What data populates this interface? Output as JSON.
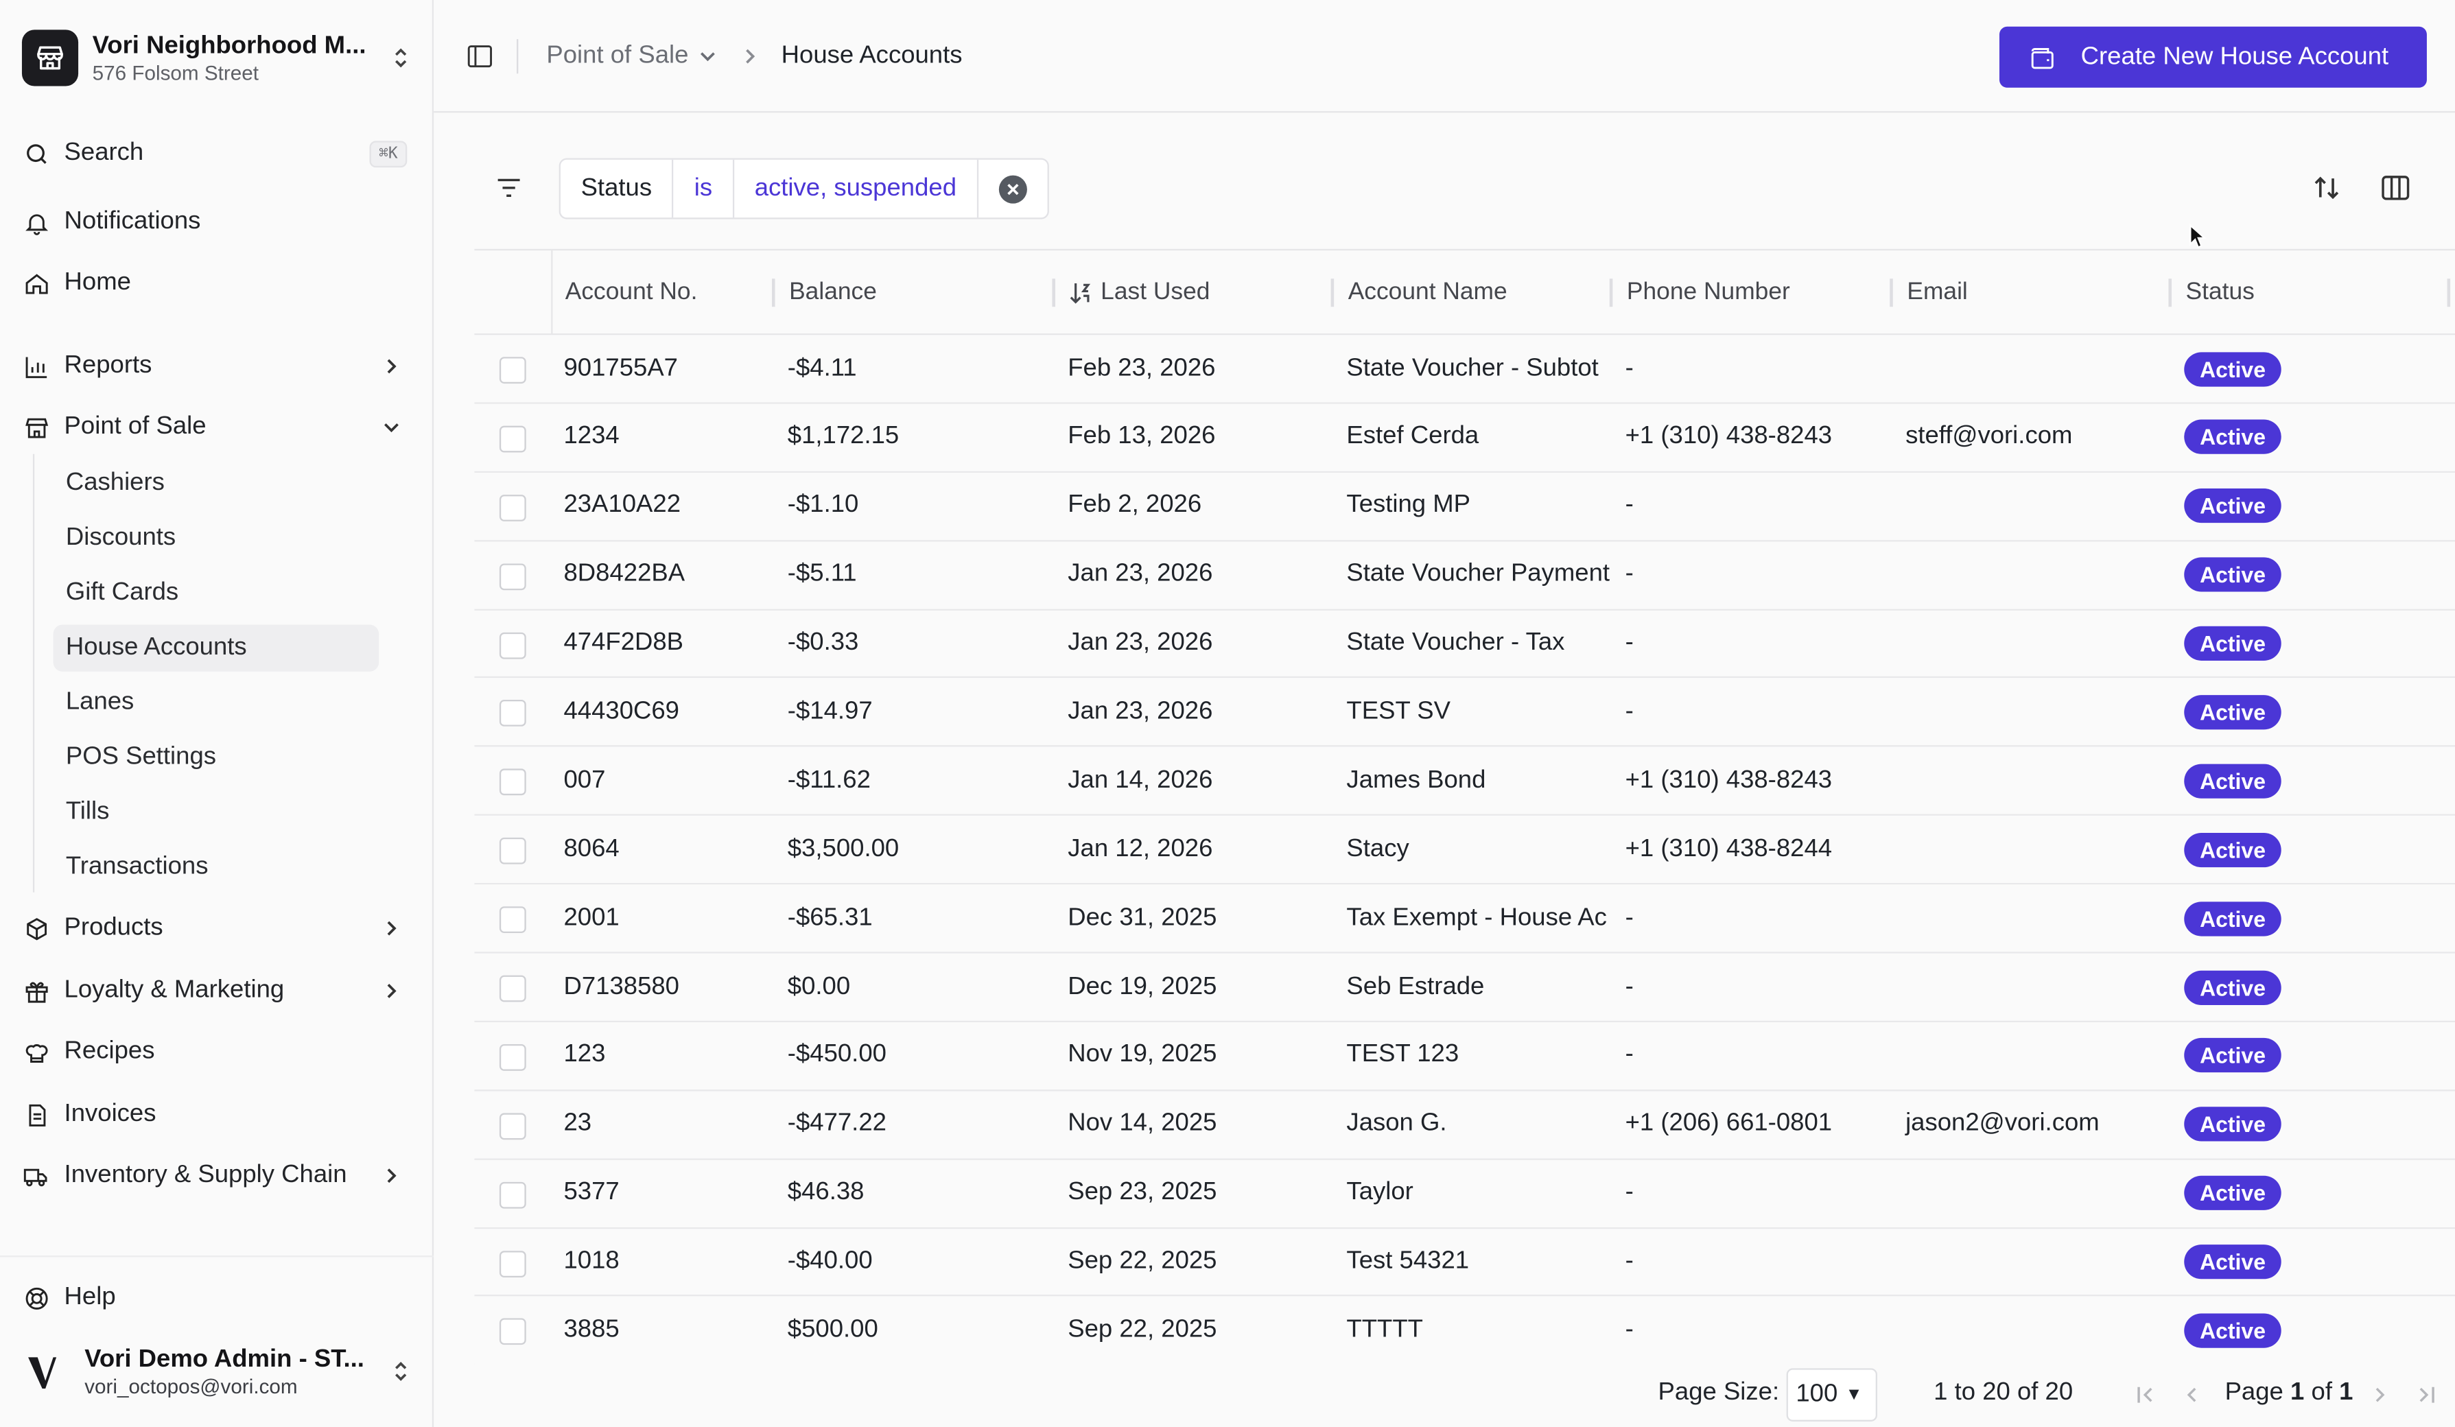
{
  "store": {
    "name": "Vori Neighborhood M...",
    "address": "576 Folsom Street"
  },
  "nav": {
    "search": {
      "label": "Search",
      "shortcut": "⌘K"
    },
    "notifications": "Notifications",
    "home": "Home",
    "reports": "Reports",
    "point_of_sale": "Point of Sale",
    "pos_items": [
      "Cashiers",
      "Discounts",
      "Gift Cards",
      "House Accounts",
      "Lanes",
      "POS Settings",
      "Tills",
      "Transactions"
    ],
    "products": "Products",
    "loyalty": "Loyalty & Marketing",
    "recipes": "Recipes",
    "invoices": "Invoices",
    "inventory": "Inventory & Supply Chain",
    "help": "Help"
  },
  "user": {
    "name": "Vori Demo Admin - ST...",
    "email": "vori_octopos@vori.com"
  },
  "breadcrumb": {
    "section": "Point of Sale",
    "current": "House Accounts"
  },
  "create_button": "Create New House Account",
  "filter": {
    "field": "Status",
    "operator": "is",
    "value": "active, suspended"
  },
  "table": {
    "columns": [
      "Account No.",
      "Balance",
      "Last Used",
      "Account Name",
      "Phone Number",
      "Email",
      "Status"
    ],
    "rows": [
      {
        "account": "901755A7",
        "balance": "-$4.11",
        "last_used": "Feb 23, 2026",
        "name": "State Voucher - Subtot",
        "phone": "-",
        "email": "",
        "status": "Active"
      },
      {
        "account": "1234",
        "balance": "$1,172.15",
        "last_used": "Feb 13, 2026",
        "name": "Estef Cerda",
        "phone": "+1 (310) 438-8243",
        "email": "steff@vori.com",
        "status": "Active"
      },
      {
        "account": "23A10A22",
        "balance": "-$1.10",
        "last_used": "Feb 2, 2026",
        "name": "Testing MP",
        "phone": "-",
        "email": "",
        "status": "Active"
      },
      {
        "account": "8D8422BA",
        "balance": "-$5.11",
        "last_used": "Jan 23, 2026",
        "name": "State Voucher Payment",
        "phone": "-",
        "email": "",
        "status": "Active"
      },
      {
        "account": "474F2D8B",
        "balance": "-$0.33",
        "last_used": "Jan 23, 2026",
        "name": "State Voucher - Tax",
        "phone": "-",
        "email": "",
        "status": "Active"
      },
      {
        "account": "44430C69",
        "balance": "-$14.97",
        "last_used": "Jan 23, 2026",
        "name": "TEST SV",
        "phone": "-",
        "email": "",
        "status": "Active"
      },
      {
        "account": "007",
        "balance": "-$11.62",
        "last_used": "Jan 14, 2026",
        "name": "James Bond",
        "phone": "+1 (310) 438-8243",
        "email": "",
        "status": "Active"
      },
      {
        "account": "8064",
        "balance": "$3,500.00",
        "last_used": "Jan 12, 2026",
        "name": "Stacy",
        "phone": "+1 (310) 438-8244",
        "email": "",
        "status": "Active"
      },
      {
        "account": "2001",
        "balance": "-$65.31",
        "last_used": "Dec 31, 2025",
        "name": "Tax Exempt - House Ac",
        "phone": "-",
        "email": "",
        "status": "Active"
      },
      {
        "account": "D7138580",
        "balance": "$0.00",
        "last_used": "Dec 19, 2025",
        "name": "Seb Estrade",
        "phone": "-",
        "email": "",
        "status": "Active"
      },
      {
        "account": "123",
        "balance": "-$450.00",
        "last_used": "Nov 19, 2025",
        "name": "TEST 123",
        "phone": "-",
        "email": "",
        "status": "Active"
      },
      {
        "account": "23",
        "balance": "-$477.22",
        "last_used": "Nov 14, 2025",
        "name": "Jason G.",
        "phone": "+1 (206) 661-0801",
        "email": "jason2@vori.com",
        "status": "Active"
      },
      {
        "account": "5377",
        "balance": "$46.38",
        "last_used": "Sep 23, 2025",
        "name": "Taylor",
        "phone": "-",
        "email": "",
        "status": "Active"
      },
      {
        "account": "1018",
        "balance": "-$40.00",
        "last_used": "Sep 22, 2025",
        "name": "Test 54321",
        "phone": "-",
        "email": "",
        "status": "Active"
      },
      {
        "account": "3885",
        "balance": "$500.00",
        "last_used": "Sep 22, 2025",
        "name": "TTTTT",
        "phone": "-",
        "email": "",
        "status": "Active"
      }
    ]
  },
  "pagination": {
    "page_size_label": "Page Size:",
    "page_size": "100",
    "range": "1 to 20 of 20",
    "page_text": "Page",
    "page": "1",
    "of_text": "of",
    "total_pages": "1"
  },
  "colors": {
    "accent": "#4b36d6"
  }
}
